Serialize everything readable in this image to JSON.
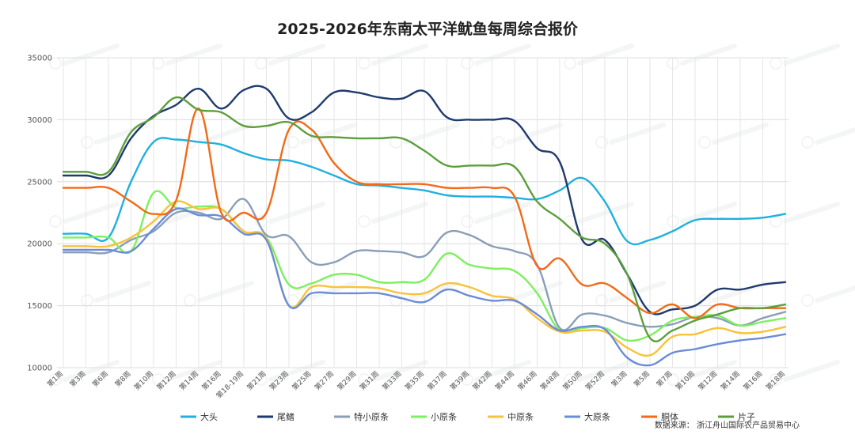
{
  "chart_data": {
    "type": "line",
    "title": "2025-2026年东南太平洋鱿鱼每周综合报价",
    "source_text": "数据来源：  浙江舟山国际农产品贸易中心",
    "ylim": [
      10000,
      35000
    ],
    "yticks": [
      "10000",
      "15000",
      "20000",
      "25000",
      "30000",
      "35000"
    ],
    "x_tick_labels": [
      "第1周",
      "第3周",
      "第6周",
      "第8周",
      "第10周",
      "第12周",
      "第14周",
      "第16周",
      "第18-19周",
      "第21周",
      "第23周",
      "第25周",
      "第27周",
      "第29周",
      "第31周",
      "第33周",
      "第35周",
      "第37周",
      "第39周",
      "第42周",
      "第44周",
      "第46周",
      "第48周",
      "第50周",
      "第52周",
      "第3周",
      "第5周",
      "第7周",
      "第10周",
      "第12周",
      "第14周",
      "第16周",
      "第18周"
    ],
    "x": [
      0,
      1,
      2,
      3,
      4,
      5,
      6,
      7,
      8,
      9,
      10,
      11,
      12,
      13,
      14,
      15,
      16,
      17,
      18,
      19,
      20,
      21,
      22,
      23,
      24,
      25,
      26,
      27,
      28,
      29,
      30,
      31,
      32
    ],
    "legend_placement": "bottom",
    "grid": true,
    "series": [
      {
        "name": "大头",
        "color": "#1fb0e0",
        "values": [
          20800,
          20800,
          20500,
          25000,
          28200,
          28400,
          28200,
          28000,
          27300,
          26800,
          26700,
          26200,
          25500,
          24800,
          24700,
          24500,
          24300,
          23900,
          23800,
          23800,
          23700,
          23600,
          24300,
          25300,
          23400,
          20200,
          20300,
          21000,
          21900,
          22000,
          22000,
          22100,
          22400
        ]
      },
      {
        "name": "尾鳍",
        "color": "#1f3a6e",
        "values": [
          25500,
          25500,
          25500,
          28500,
          30300,
          31200,
          32500,
          30900,
          32400,
          32500,
          30100,
          30600,
          32200,
          32200,
          31800,
          31700,
          32300,
          30200,
          30000,
          30000,
          29900,
          27700,
          26600,
          20300,
          20300,
          17500,
          14500,
          14700,
          15000,
          16300,
          16300,
          16700,
          16900
        ]
      },
      {
        "name": "特小原条",
        "color": "#8a9eb8",
        "values": [
          19300,
          19300,
          19300,
          20300,
          21000,
          22500,
          22500,
          22000,
          23600,
          20700,
          20600,
          18500,
          18500,
          19400,
          19400,
          19300,
          19000,
          20900,
          20700,
          19800,
          19400,
          18300,
          13200,
          14300,
          14200,
          13600,
          13300,
          13500,
          14100,
          14000,
          13400,
          14000,
          14500
        ]
      },
      {
        "name": "小原条",
        "color": "#7cf05e",
        "values": [
          20500,
          20500,
          20500,
          19400,
          24100,
          22900,
          23000,
          22800,
          21000,
          20500,
          16700,
          16800,
          17500,
          17500,
          16900,
          16900,
          17100,
          19200,
          18300,
          18000,
          17800,
          16000,
          13000,
          13200,
          13200,
          12200,
          12600,
          13800,
          14100,
          14200,
          13400,
          13700,
          14000
        ]
      },
      {
        "name": "中原条",
        "color": "#f8c23a",
        "values": [
          19800,
          19800,
          19800,
          20500,
          21800,
          23400,
          22800,
          22800,
          21000,
          20400,
          15000,
          16500,
          16500,
          16500,
          16400,
          16000,
          16000,
          16800,
          16500,
          15800,
          15500,
          14000,
          12900,
          13000,
          12900,
          11600,
          11000,
          12500,
          12700,
          13200,
          12800,
          12900,
          13300
        ]
      },
      {
        "name": "大原条",
        "color": "#6a8cd8",
        "values": [
          19500,
          19500,
          19500,
          19400,
          21200,
          22800,
          22300,
          22200,
          20800,
          20300,
          15000,
          16000,
          16000,
          16000,
          16000,
          15600,
          15300,
          16300,
          15800,
          15400,
          15400,
          14300,
          13000,
          13300,
          13100,
          10800,
          10200,
          11200,
          11500,
          11900,
          12200,
          12400,
          12700
        ]
      },
      {
        "name": "胴体",
        "color": "#f26a18",
        "values": [
          24500,
          24500,
          24500,
          23400,
          22400,
          23500,
          30900,
          22500,
          22500,
          22500,
          29200,
          29200,
          26500,
          25000,
          24800,
          24800,
          24800,
          24500,
          24500,
          24500,
          23800,
          18200,
          18800,
          16700,
          16800,
          15600,
          14400,
          15100,
          14000,
          15100,
          14800,
          14800,
          14800
        ]
      },
      {
        "name": "片子",
        "color": "#5c9e3c",
        "values": [
          25800,
          25800,
          25800,
          29000,
          30200,
          31800,
          30800,
          30600,
          29500,
          29500,
          29800,
          28700,
          28600,
          28500,
          28500,
          28500,
          27500,
          26300,
          26300,
          26300,
          26200,
          23400,
          22000,
          20500,
          20000,
          17500,
          12400,
          13000,
          13800,
          14300,
          14800,
          14800,
          15100
        ]
      }
    ]
  }
}
